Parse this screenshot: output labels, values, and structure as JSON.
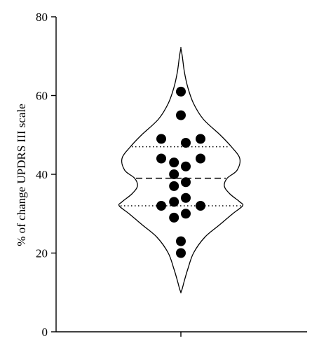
{
  "chart_data": {
    "type": "violin",
    "title": "",
    "xlabel": "",
    "ylabel": "% of change UPDRS III scale",
    "ylim": [
      0,
      80
    ],
    "yticks": [
      0,
      20,
      40,
      60,
      80
    ],
    "ytick_labels": [
      "0",
      "20",
      "40",
      "60",
      "80"
    ],
    "grid": false,
    "median": 39,
    "quartiles": [
      32,
      47
    ],
    "range": [
      10,
      72
    ],
    "points": [
      {
        "group": 0,
        "y": 61
      },
      {
        "group": 0,
        "y": 55
      },
      {
        "group": -2,
        "y": 49
      },
      {
        "group": 2,
        "y": 49
      },
      {
        "group": 0.5,
        "y": 48
      },
      {
        "group": -2,
        "y": 44
      },
      {
        "group": 2,
        "y": 44
      },
      {
        "group": -0.7,
        "y": 43
      },
      {
        "group": 0.5,
        "y": 42
      },
      {
        "group": -0.7,
        "y": 40
      },
      {
        "group": 0.5,
        "y": 38
      },
      {
        "group": -0.7,
        "y": 37
      },
      {
        "group": 0.5,
        "y": 34
      },
      {
        "group": -0.7,
        "y": 33
      },
      {
        "group": -2,
        "y": 32
      },
      {
        "group": 2,
        "y": 32
      },
      {
        "group": 0.5,
        "y": 30
      },
      {
        "group": -0.7,
        "y": 29
      },
      {
        "group": 0,
        "y": 23
      },
      {
        "group": 0,
        "y": 20
      }
    ]
  }
}
